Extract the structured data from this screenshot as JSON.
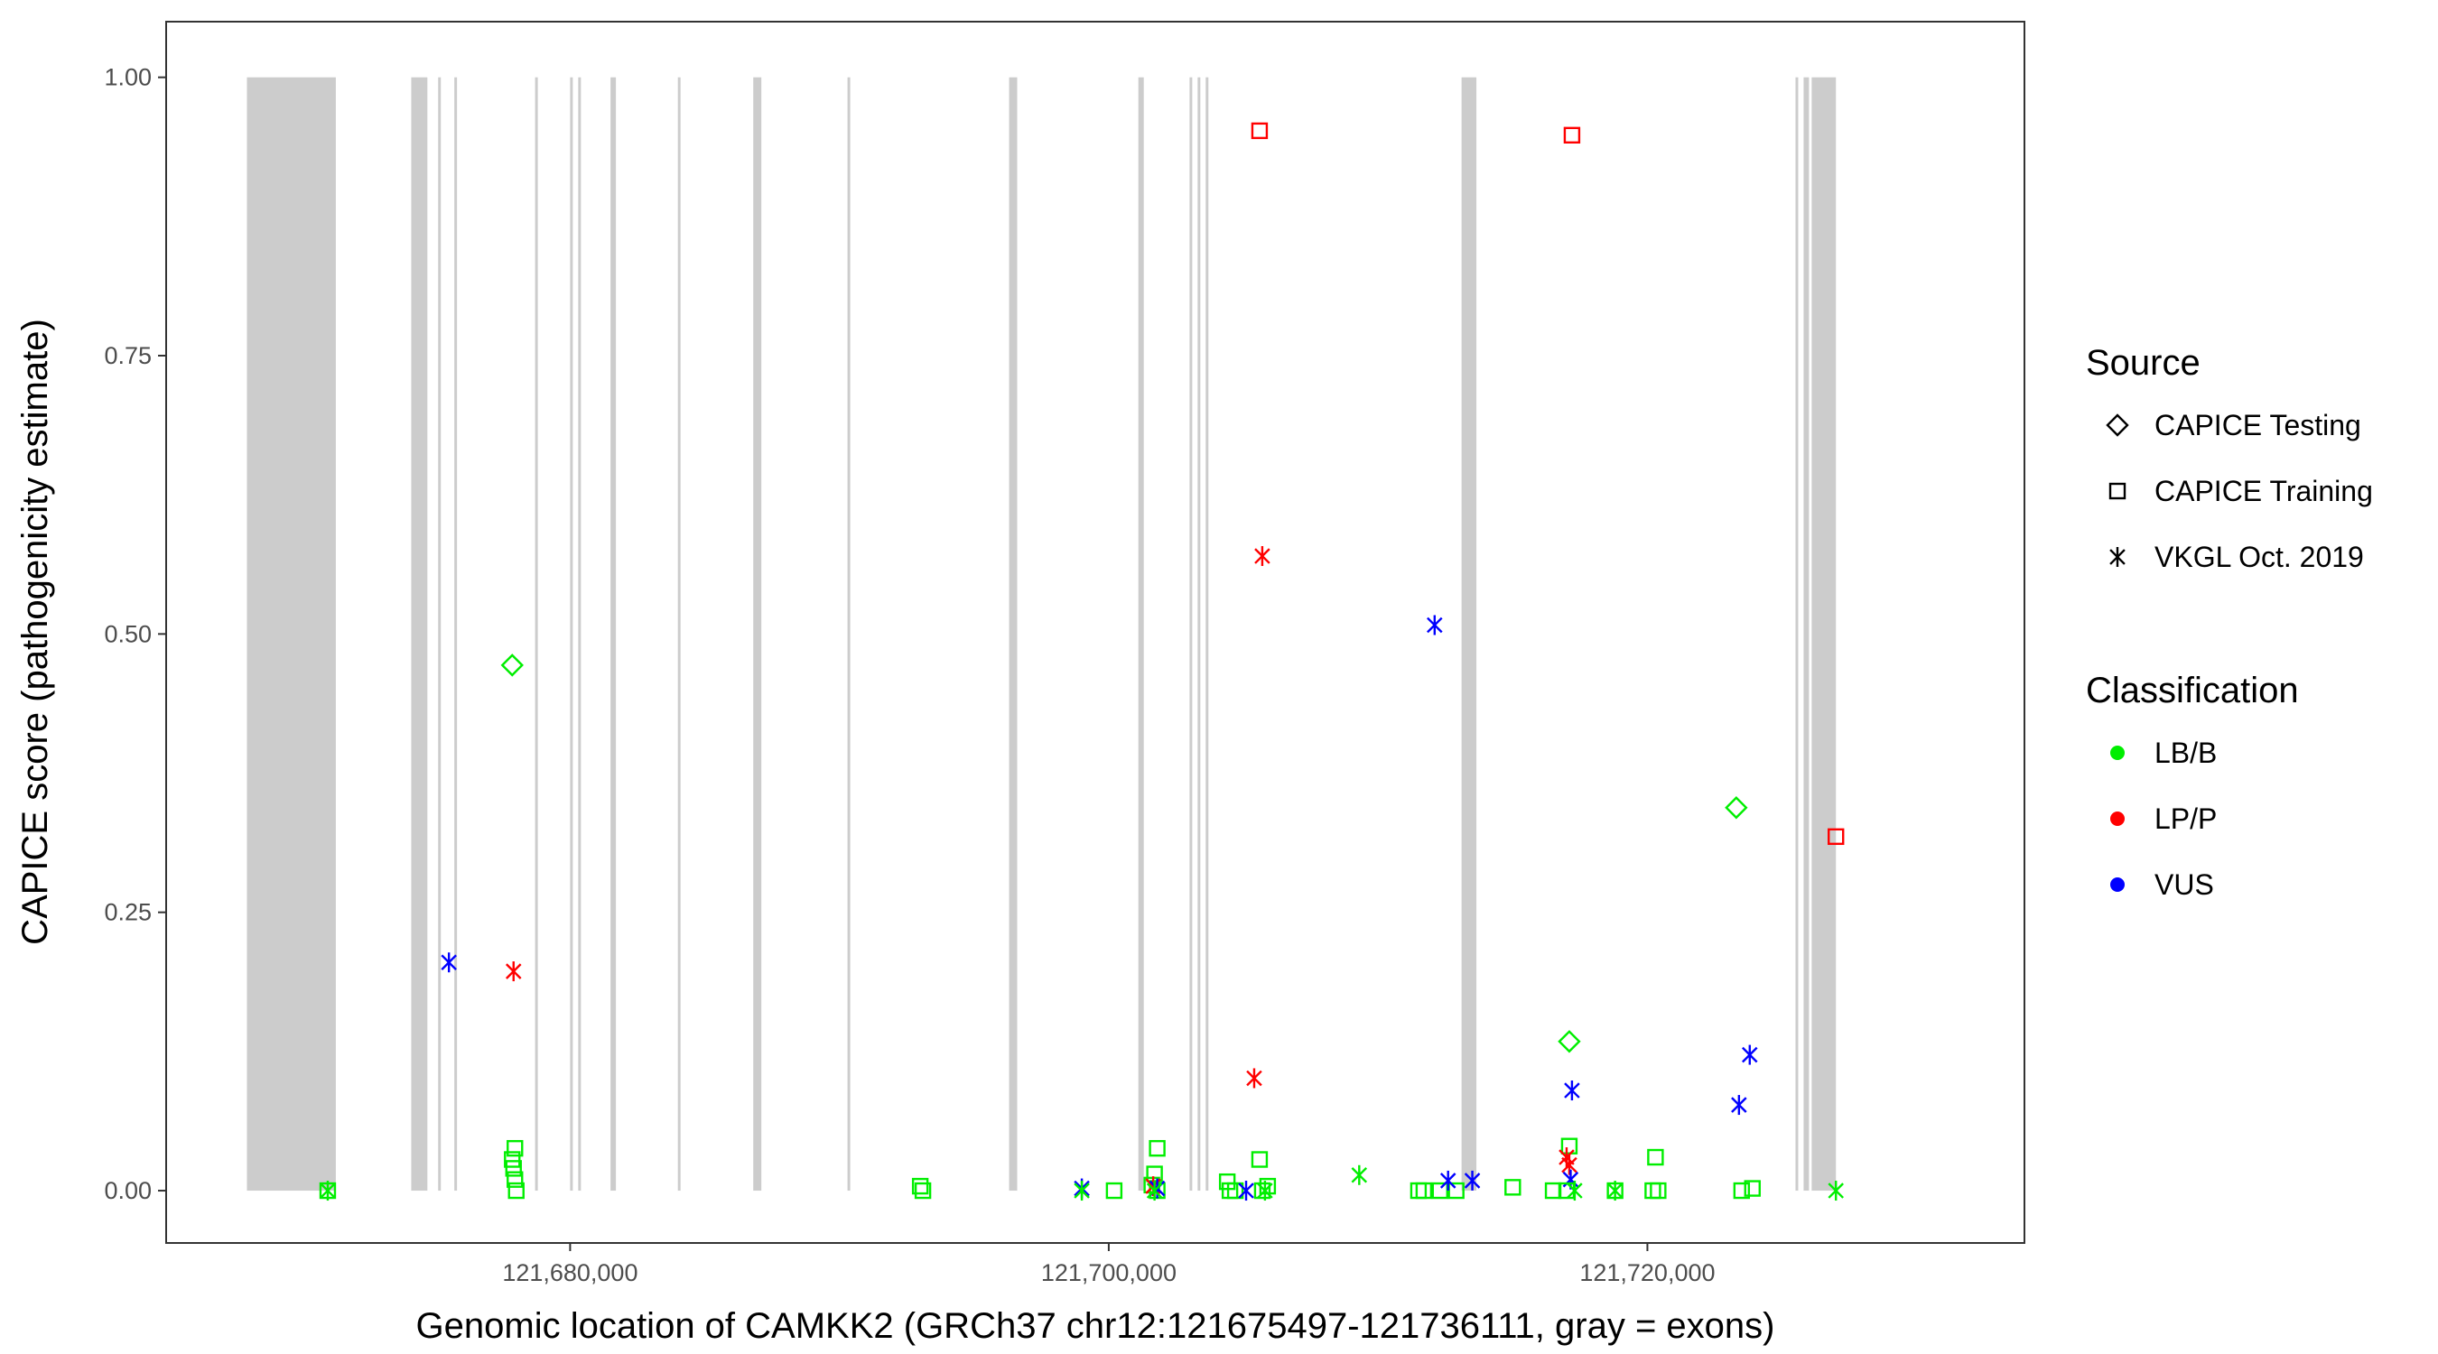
{
  "chart_data": {
    "type": "scatter",
    "title": "",
    "xlabel": "Genomic location of CAMKK2 (GRCh37 chr12:121675497-121736111, gray = exons)",
    "ylabel": "CAPICE score (pathogenicity estimate)",
    "xlim": [
      121665000,
      121734000
    ],
    "ylim": [
      -0.047,
      1.05
    ],
    "x_ticks": [
      121680000,
      121700000,
      121720000
    ],
    "x_tick_labels": [
      "121,680,000",
      "121,700,000",
      "121,720,000"
    ],
    "y_ticks": [
      0,
      0.25,
      0.5,
      0.75,
      1.0
    ],
    "y_tick_labels": [
      "0.00",
      "0.25",
      "0.50",
      "0.75",
      "1.00"
    ],
    "grid": false,
    "exon_color": "#cccccc",
    "exons": [
      [
        121668000,
        121671300
      ],
      [
        121674100,
        121674700
      ],
      [
        121675100,
        121675200
      ],
      [
        121675700,
        121675800
      ],
      [
        121678700,
        121678800
      ],
      [
        121680000,
        121680100
      ],
      [
        121680300,
        121680400
      ],
      [
        121681500,
        121681700
      ],
      [
        121684000,
        121684100
      ],
      [
        121686800,
        121687100
      ],
      [
        121690300,
        121690400
      ],
      [
        121696300,
        121696600
      ],
      [
        121701100,
        121701300
      ],
      [
        121703000,
        121703100
      ],
      [
        121703300,
        121703400
      ],
      [
        121703600,
        121703700
      ],
      [
        121713100,
        121713650
      ],
      [
        121725500,
        121725600
      ],
      [
        121725800,
        121726000
      ],
      [
        121726100,
        121727000
      ]
    ],
    "legend": {
      "source_title": "Source",
      "classification_title": "Classification",
      "position": "right",
      "sources": [
        {
          "label": "CAPICE Testing",
          "shape": "diamond"
        },
        {
          "label": "CAPICE Training",
          "shape": "square"
        },
        {
          "label": "VKGL Oct. 2019",
          "shape": "asterisk"
        }
      ],
      "classes": [
        {
          "label": "LB/B",
          "color": "#00ee00"
        },
        {
          "label": "LP/P",
          "color": "#ff0000"
        },
        {
          "label": "VUS",
          "color": "#0000ff"
        }
      ]
    },
    "points": [
      {
        "x": 121671000,
        "y": 0.0,
        "source": "VKGL Oct. 2019",
        "class": "LB/B"
      },
      {
        "x": 121671000,
        "y": 0.0,
        "source": "CAPICE Training",
        "class": "LB/B"
      },
      {
        "x": 121675500,
        "y": 0.205,
        "source": "VKGL Oct. 2019",
        "class": "VUS"
      },
      {
        "x": 121677850,
        "y": 0.472,
        "source": "CAPICE Testing",
        "class": "LB/B"
      },
      {
        "x": 121677900,
        "y": 0.197,
        "source": "VKGL Oct. 2019",
        "class": "LP/P"
      },
      {
        "x": 121677950,
        "y": 0.038,
        "source": "CAPICE Training",
        "class": "LB/B"
      },
      {
        "x": 121677850,
        "y": 0.028,
        "source": "CAPICE Training",
        "class": "LB/B"
      },
      {
        "x": 121677900,
        "y": 0.02,
        "source": "CAPICE Training",
        "class": "LB/B"
      },
      {
        "x": 121677950,
        "y": 0.01,
        "source": "CAPICE Training",
        "class": "LB/B"
      },
      {
        "x": 121678000,
        "y": 0.0,
        "source": "CAPICE Training",
        "class": "LB/B"
      },
      {
        "x": 121693000,
        "y": 0.004,
        "source": "CAPICE Training",
        "class": "LB/B"
      },
      {
        "x": 121693100,
        "y": 0.0,
        "source": "CAPICE Training",
        "class": "LB/B"
      },
      {
        "x": 121699000,
        "y": 0.002,
        "source": "VKGL Oct. 2019",
        "class": "VUS"
      },
      {
        "x": 121699000,
        "y": 0.0,
        "source": "VKGL Oct. 2019",
        "class": "LB/B"
      },
      {
        "x": 121700200,
        "y": 0.0,
        "source": "CAPICE Training",
        "class": "LB/B"
      },
      {
        "x": 121701800,
        "y": 0.038,
        "source": "CAPICE Training",
        "class": "LB/B"
      },
      {
        "x": 121701700,
        "y": 0.015,
        "source": "CAPICE Training",
        "class": "LB/B"
      },
      {
        "x": 121701600,
        "y": 0.005,
        "source": "CAPICE Training",
        "class": "LB/B"
      },
      {
        "x": 121701800,
        "y": 0.0,
        "source": "CAPICE Training",
        "class": "LB/B"
      },
      {
        "x": 121701650,
        "y": 0.004,
        "source": "VKGL Oct. 2019",
        "class": "LP/P"
      },
      {
        "x": 121701800,
        "y": 0.002,
        "source": "VKGL Oct. 2019",
        "class": "VUS"
      },
      {
        "x": 121701700,
        "y": 0.0,
        "source": "VKGL Oct. 2019",
        "class": "LB/B"
      },
      {
        "x": 121705600,
        "y": 0.952,
        "source": "CAPICE Training",
        "class": "LP/P"
      },
      {
        "x": 121705700,
        "y": 0.57,
        "source": "VKGL Oct. 2019",
        "class": "LP/P"
      },
      {
        "x": 121705400,
        "y": 0.101,
        "source": "VKGL Oct. 2019",
        "class": "LP/P"
      },
      {
        "x": 121705600,
        "y": 0.028,
        "source": "CAPICE Training",
        "class": "LB/B"
      },
      {
        "x": 121704400,
        "y": 0.008,
        "source": "CAPICE Training",
        "class": "LB/B"
      },
      {
        "x": 121704500,
        "y": 0.0,
        "source": "CAPICE Training",
        "class": "LB/B"
      },
      {
        "x": 121704700,
        "y": 0.0,
        "source": "CAPICE Training",
        "class": "LB/B"
      },
      {
        "x": 121705700,
        "y": 0.0,
        "source": "CAPICE Training",
        "class": "LB/B"
      },
      {
        "x": 121705900,
        "y": 0.004,
        "source": "CAPICE Training",
        "class": "LB/B"
      },
      {
        "x": 121705100,
        "y": 0.0,
        "source": "VKGL Oct. 2019",
        "class": "VUS"
      },
      {
        "x": 121705800,
        "y": 0.0,
        "source": "VKGL Oct. 2019",
        "class": "LB/B"
      },
      {
        "x": 121709300,
        "y": 0.014,
        "source": "VKGL Oct. 2019",
        "class": "LB/B"
      },
      {
        "x": 121711500,
        "y": 0.0,
        "source": "CAPICE Training",
        "class": "LB/B"
      },
      {
        "x": 121711700,
        "y": 0.0,
        "source": "CAPICE Training",
        "class": "LB/B"
      },
      {
        "x": 121712300,
        "y": 0.0,
        "source": "CAPICE Training",
        "class": "LB/B"
      },
      {
        "x": 121712900,
        "y": 0.0,
        "source": "CAPICE Training",
        "class": "LB/B"
      },
      {
        "x": 121712100,
        "y": 0.508,
        "source": "VKGL Oct. 2019",
        "class": "VUS"
      },
      {
        "x": 121712600,
        "y": 0.009,
        "source": "VKGL Oct. 2019",
        "class": "VUS"
      },
      {
        "x": 121713500,
        "y": 0.009,
        "source": "VKGL Oct. 2019",
        "class": "VUS"
      },
      {
        "x": 121715000,
        "y": 0.003,
        "source": "CAPICE Training",
        "class": "LB/B"
      },
      {
        "x": 121716500,
        "y": 0.0,
        "source": "CAPICE Training",
        "class": "LB/B"
      },
      {
        "x": 121717200,
        "y": 0.948,
        "source": "CAPICE Training",
        "class": "LP/P"
      },
      {
        "x": 121717100,
        "y": 0.134,
        "source": "CAPICE Testing",
        "class": "LB/B"
      },
      {
        "x": 121717200,
        "y": 0.09,
        "source": "VKGL Oct. 2019",
        "class": "VUS"
      },
      {
        "x": 121717100,
        "y": 0.04,
        "source": "CAPICE Training",
        "class": "LB/B"
      },
      {
        "x": 121717000,
        "y": 0.03,
        "source": "VKGL Oct. 2019",
        "class": "LP/P"
      },
      {
        "x": 121717100,
        "y": 0.023,
        "source": "VKGL Oct. 2019",
        "class": "LP/P"
      },
      {
        "x": 121717150,
        "y": 0.01,
        "source": "VKGL Oct. 2019",
        "class": "VUS"
      },
      {
        "x": 121717000,
        "y": 0.0,
        "source": "CAPICE Training",
        "class": "LB/B"
      },
      {
        "x": 121717300,
        "y": 0.0,
        "source": "VKGL Oct. 2019",
        "class": "LB/B"
      },
      {
        "x": 121718800,
        "y": 0.0,
        "source": "VKGL Oct. 2019",
        "class": "LB/B"
      },
      {
        "x": 121718800,
        "y": 0.0,
        "source": "CAPICE Training",
        "class": "LB/B"
      },
      {
        "x": 121720300,
        "y": 0.03,
        "source": "CAPICE Training",
        "class": "LB/B"
      },
      {
        "x": 121720200,
        "y": 0.0,
        "source": "CAPICE Training",
        "class": "LB/B"
      },
      {
        "x": 121720400,
        "y": 0.0,
        "source": "CAPICE Training",
        "class": "LB/B"
      },
      {
        "x": 121723300,
        "y": 0.344,
        "source": "CAPICE Testing",
        "class": "LB/B"
      },
      {
        "x": 121723400,
        "y": 0.077,
        "source": "VKGL Oct. 2019",
        "class": "VUS"
      },
      {
        "x": 121723800,
        "y": 0.122,
        "source": "VKGL Oct. 2019",
        "class": "VUS"
      },
      {
        "x": 121723500,
        "y": 0.0,
        "source": "CAPICE Training",
        "class": "LB/B"
      },
      {
        "x": 121723900,
        "y": 0.002,
        "source": "CAPICE Training",
        "class": "LB/B"
      },
      {
        "x": 121727000,
        "y": 0.318,
        "source": "CAPICE Training",
        "class": "LP/P"
      },
      {
        "x": 121727000,
        "y": 0.0,
        "source": "VKGL Oct. 2019",
        "class": "LB/B"
      }
    ]
  }
}
